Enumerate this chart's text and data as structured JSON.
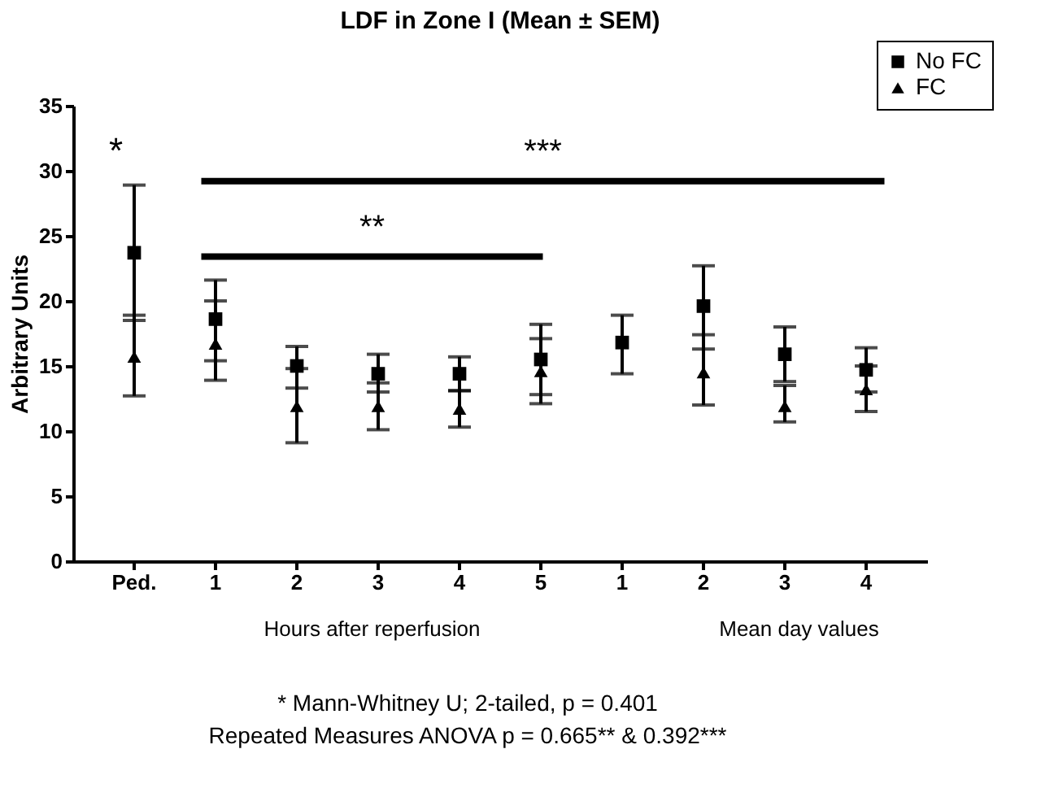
{
  "chart_data": {
    "type": "scatter",
    "title": "LDF in Zone I (Mean ± SEM)",
    "ylabel": "Arbitrary Units",
    "categories": [
      "Ped.",
      "1",
      "2",
      "3",
      "4",
      "5",
      "1",
      "2",
      "3",
      "4"
    ],
    "series": [
      {
        "name": "No FC",
        "color": "#000000",
        "marker": "square",
        "values": [
          23.7,
          18.6,
          15.0,
          14.4,
          14.4,
          15.5,
          16.8,
          19.6,
          15.9,
          14.7
        ],
        "errors": [
          [
            18.5,
            28.9
          ],
          [
            15.4,
            21.6
          ],
          [
            13.3,
            16.5
          ],
          [
            13.0,
            15.9
          ],
          [
            13.1,
            15.7
          ],
          [
            12.8,
            18.2
          ],
          [
            14.4,
            18.9
          ],
          [
            16.3,
            22.7
          ],
          [
            13.8,
            18.0
          ],
          [
            13.0,
            16.4
          ]
        ]
      },
      {
        "name": "FC",
        "color": "#000000",
        "marker": "triangle",
        "values": [
          15.7,
          16.7,
          11.9,
          11.9,
          11.7,
          14.6,
          null,
          14.5,
          11.9,
          13.2
        ],
        "errors": [
          [
            12.7,
            18.9
          ],
          [
            13.9,
            20.0
          ],
          [
            9.1,
            14.8
          ],
          [
            10.1,
            13.7
          ],
          [
            10.3,
            13.1
          ],
          [
            12.1,
            17.1
          ],
          null,
          [
            12.0,
            17.4
          ],
          [
            10.7,
            13.5
          ],
          [
            11.5,
            15.0
          ]
        ]
      }
    ],
    "ylim": [
      0,
      35
    ],
    "yticks": [
      0,
      5,
      10,
      15,
      20,
      25,
      30,
      35
    ],
    "grid": false,
    "legend": "top right",
    "ref_lines": [
      {
        "axis": "y",
        "value": 23.4,
        "label": "**",
        "color": "#000000"
      },
      {
        "axis": "y",
        "value": 29.2,
        "label": "***",
        "color": "#000000"
      }
    ],
    "annotations": [
      "*",
      "Hours after reperfusion",
      "Mean day values",
      "* Mann-Whitney U; 2-tailed, p = 0.401",
      "Repeated Measures ANOVA p = 0.665** & 0.392***"
    ]
  }
}
